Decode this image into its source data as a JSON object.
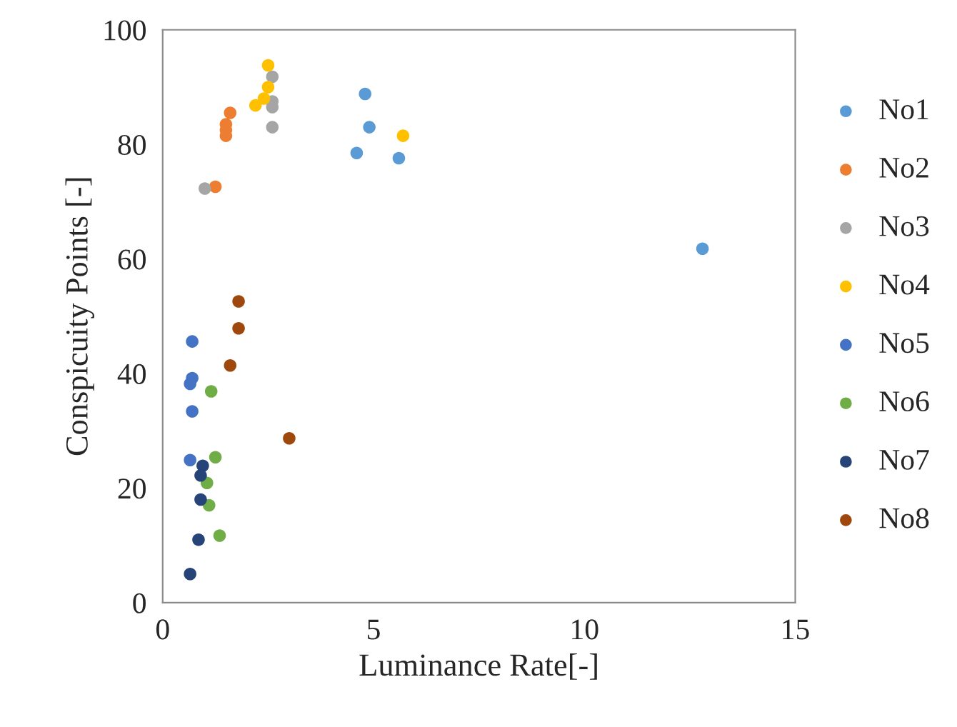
{
  "chart_data": {
    "type": "scatter",
    "xlabel": "Luminance Rate[-]",
    "ylabel": "Conspicuity Points [-]",
    "xlim": [
      0,
      15
    ],
    "xticks": [
      0,
      5,
      10,
      15
    ],
    "ylim": [
      0,
      100
    ],
    "yticks": [
      0,
      20,
      40,
      60,
      80,
      100
    ],
    "grid": false,
    "legend": "right",
    "marker": "circle",
    "series": [
      {
        "name": "No1",
        "color": "#5b9bd5",
        "x": [
          4.8,
          4.9,
          4.6,
          5.6,
          12.8
        ],
        "values": [
          88.8,
          83.0,
          78.5,
          77.6,
          61.8
        ]
      },
      {
        "name": "No2",
        "color": "#ed7d31",
        "x": [
          1.6,
          1.5,
          1.5,
          1.5,
          1.25
        ],
        "values": [
          85.5,
          83.5,
          82.5,
          81.5,
          72.6
        ]
      },
      {
        "name": "No3",
        "color": "#a5a5a5",
        "x": [
          2.6,
          2.6,
          2.6,
          2.6,
          1.0
        ],
        "values": [
          91.8,
          87.5,
          86.5,
          83.0,
          72.3
        ]
      },
      {
        "name": "No4",
        "color": "#ffc000",
        "x": [
          2.5,
          2.5,
          2.4,
          2.2,
          5.7
        ],
        "values": [
          93.8,
          90.0,
          88.0,
          86.8,
          81.5
        ]
      },
      {
        "name": "No5",
        "color": "#4472c4",
        "x": [
          0.7,
          0.7,
          0.65,
          0.7,
          0.65
        ],
        "values": [
          45.6,
          39.2,
          38.2,
          33.4,
          24.9
        ]
      },
      {
        "name": "No6",
        "color": "#70ad47",
        "x": [
          1.15,
          1.25,
          1.05,
          1.1,
          1.35
        ],
        "values": [
          36.9,
          25.4,
          20.9,
          17.0,
          11.7
        ]
      },
      {
        "name": "No7",
        "color": "#264478",
        "x": [
          0.95,
          0.9,
          0.9,
          0.85,
          0.65
        ],
        "values": [
          23.9,
          22.2,
          18.0,
          11.0,
          5.0
        ]
      },
      {
        "name": "No8",
        "color": "#9e480e",
        "x": [
          1.8,
          1.8,
          1.6,
          3.0
        ],
        "values": [
          52.6,
          47.9,
          41.4,
          28.7
        ]
      }
    ]
  }
}
